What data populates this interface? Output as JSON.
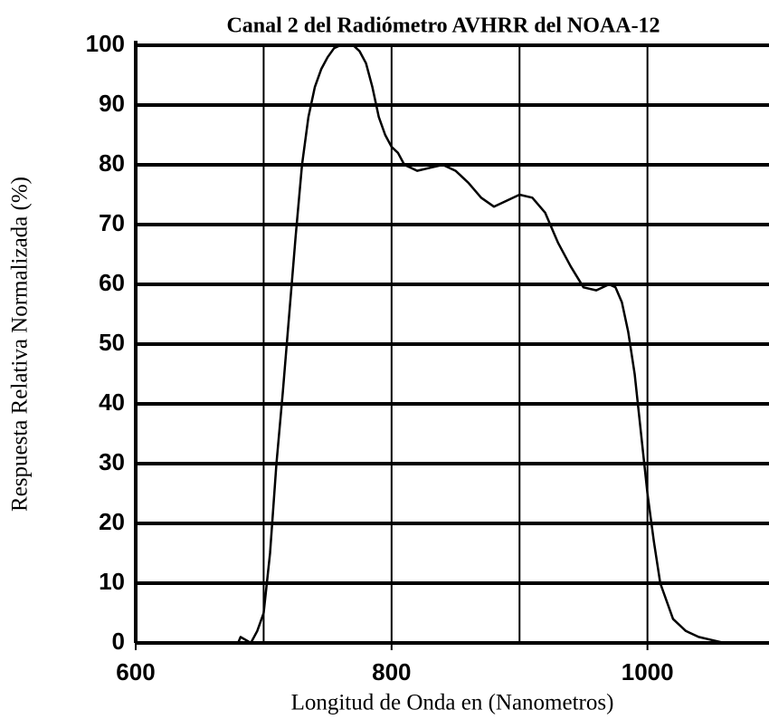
{
  "chart_data": {
    "type": "line",
    "title": "Canal 2 del Radiómetro AVHRR del NOAA-12",
    "xlabel": "Longitud de Onda en (Nanometros)",
    "ylabel": "Respuesta Relativa Normalizada (%)",
    "xlim": [
      600,
      1095
    ],
    "xticks": [
      600,
      800,
      1000
    ],
    "xgrid": [
      700,
      800,
      900,
      1000
    ],
    "ylim": [
      0,
      100
    ],
    "yticks": [
      0,
      10,
      20,
      30,
      40,
      50,
      60,
      70,
      80,
      90,
      100
    ],
    "grid": true,
    "color": "#000000",
    "x": [
      600,
      680,
      682,
      690,
      695,
      700,
      705,
      710,
      715,
      720,
      725,
      730,
      735,
      740,
      745,
      750,
      755,
      760,
      770,
      775,
      780,
      785,
      790,
      795,
      800,
      805,
      810,
      815,
      820,
      830,
      840,
      850,
      860,
      870,
      880,
      890,
      900,
      910,
      920,
      930,
      940,
      950,
      960,
      970,
      975,
      980,
      985,
      990,
      995,
      1000,
      1005,
      1010,
      1020,
      1030,
      1040,
      1050,
      1060,
      1095
    ],
    "values": [
      0,
      0,
      1,
      0,
      2,
      5,
      15,
      30,
      42,
      55,
      68,
      80,
      88,
      93,
      96,
      98,
      99.5,
      100,
      100,
      99,
      97,
      93,
      88,
      85,
      83,
      82,
      80,
      79.5,
      79,
      79.5,
      80,
      79,
      77,
      74.5,
      73,
      74,
      75,
      74.5,
      72,
      67,
      63,
      59.5,
      59,
      60,
      59.5,
      57,
      52,
      45,
      35,
      25,
      17,
      10,
      4,
      2,
      1,
      0.5,
      0,
      0
    ]
  }
}
